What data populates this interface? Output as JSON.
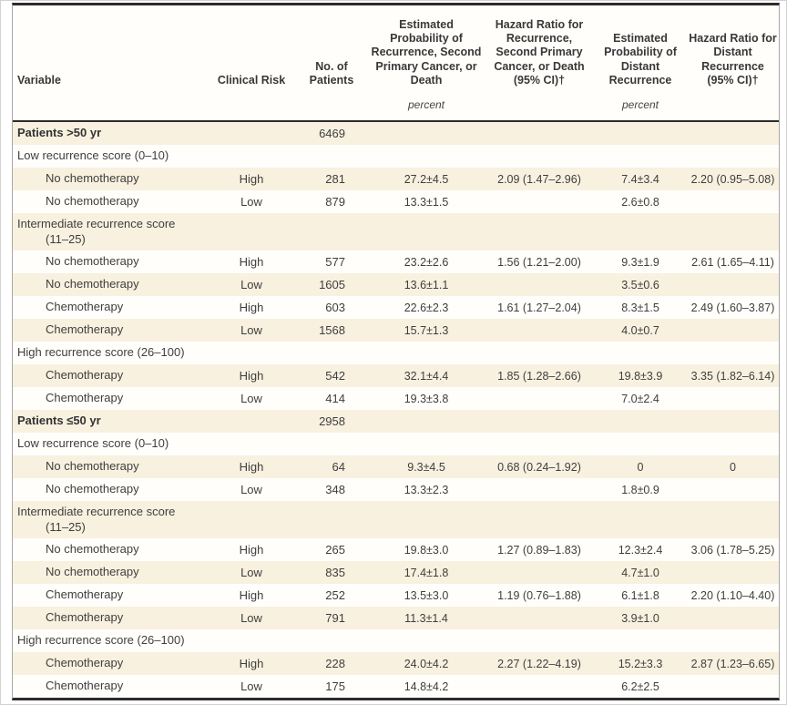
{
  "colors": {
    "row_shade": "#f8f1df",
    "rule_dark": "#2c2c2c",
    "side_border": "#a8a8a8",
    "text": "#3e3e3e"
  },
  "table": {
    "columns": {
      "variable": "Variable",
      "clinical_risk": "Clinical Risk",
      "no_of_patients": "No. of Patients",
      "prob_recurrence": "Estimated Probability of Recurrence, Second Primary Cancer, or Death",
      "hr_recurrence": "Hazard Ratio for Recurrence, Second Primary Cancer, or Death (95% CI)†",
      "prob_distant": "Estimated Probability of Distant Recurrence",
      "hr_distant": "Hazard Ratio for Distant Recurrence (95% CI)†"
    },
    "units_label": "percent",
    "rows": [
      {
        "variable": "Patients >50 yr",
        "bold": true,
        "no_of_patients": "6469",
        "shaded": true
      },
      {
        "variable": "Low recurrence score (0–10)",
        "shaded": false
      },
      {
        "variable": "No chemotherapy",
        "indent": true,
        "clinical_risk": "High",
        "no_of_patients": "281",
        "prob_recurrence": "27.2±4.5",
        "hr_recurrence": "2.09 (1.47–2.96)",
        "prob_distant": "7.4±3.4",
        "hr_distant": "2.20 (0.95–5.08)",
        "shaded": true
      },
      {
        "variable": "No chemotherapy",
        "indent": true,
        "clinical_risk": "Low",
        "no_of_patients": "879",
        "prob_recurrence": "13.3±1.5",
        "prob_distant": "2.6±0.8",
        "shaded": false
      },
      {
        "variable": "Intermediate recurrence score",
        "variable_line2": "(11–25)",
        "shaded": true
      },
      {
        "variable": "No chemotherapy",
        "indent": true,
        "clinical_risk": "High",
        "no_of_patients": "577",
        "prob_recurrence": "23.2±2.6",
        "hr_recurrence": "1.56 (1.21–2.00)",
        "prob_distant": "9.3±1.9",
        "hr_distant": "2.61 (1.65–4.11)",
        "shaded": false
      },
      {
        "variable": "No chemotherapy",
        "indent": true,
        "clinical_risk": "Low",
        "no_of_patients": "1605",
        "prob_recurrence": "13.6±1.1",
        "prob_distant": "3.5±0.6",
        "shaded": true
      },
      {
        "variable": "Chemotherapy",
        "indent": true,
        "clinical_risk": "High",
        "no_of_patients": "603",
        "prob_recurrence": "22.6±2.3",
        "hr_recurrence": "1.61 (1.27–2.04)",
        "prob_distant": "8.3±1.5",
        "hr_distant": "2.49 (1.60–3.87)",
        "shaded": false
      },
      {
        "variable": "Chemotherapy",
        "indent": true,
        "clinical_risk": "Low",
        "no_of_patients": "1568",
        "prob_recurrence": "15.7±1.3",
        "prob_distant": "4.0±0.7",
        "shaded": true
      },
      {
        "variable": "High recurrence score (26–100)",
        "shaded": false
      },
      {
        "variable": "Chemotherapy",
        "indent": true,
        "clinical_risk": "High",
        "no_of_patients": "542",
        "prob_recurrence": "32.1±4.4",
        "hr_recurrence": "1.85 (1.28–2.66)",
        "prob_distant": "19.8±3.9",
        "hr_distant": "3.35 (1.82–6.14)",
        "shaded": true
      },
      {
        "variable": "Chemotherapy",
        "indent": true,
        "clinical_risk": "Low",
        "no_of_patients": "414",
        "prob_recurrence": "19.3±3.8",
        "prob_distant": "7.0±2.4",
        "shaded": false
      },
      {
        "variable": "Patients ≤50 yr",
        "bold": true,
        "no_of_patients": "2958",
        "shaded": true
      },
      {
        "variable": "Low recurrence score (0–10)",
        "shaded": false
      },
      {
        "variable": "No chemotherapy",
        "indent": true,
        "clinical_risk": "High",
        "no_of_patients": "64",
        "prob_recurrence": "9.3±4.5",
        "hr_recurrence": "0.68 (0.24–1.92)",
        "prob_distant": "0",
        "hr_distant": "0",
        "shaded": true
      },
      {
        "variable": "No chemotherapy",
        "indent": true,
        "clinical_risk": "Low",
        "no_of_patients": "348",
        "prob_recurrence": "13.3±2.3",
        "prob_distant": "1.8±0.9",
        "shaded": false
      },
      {
        "variable": "Intermediate recurrence score",
        "variable_line2": "(11–25)",
        "shaded": true
      },
      {
        "variable": "No chemotherapy",
        "indent": true,
        "clinical_risk": "High",
        "no_of_patients": "265",
        "prob_recurrence": "19.8±3.0",
        "hr_recurrence": "1.27 (0.89–1.83)",
        "prob_distant": "12.3±2.4",
        "hr_distant": "3.06 (1.78–5.25)",
        "shaded": false
      },
      {
        "variable": "No chemotherapy",
        "indent": true,
        "clinical_risk": "Low",
        "no_of_patients": "835",
        "prob_recurrence": "17.4±1.8",
        "prob_distant": "4.7±1.0",
        "shaded": true
      },
      {
        "variable": "Chemotherapy",
        "indent": true,
        "clinical_risk": "High",
        "no_of_patients": "252",
        "prob_recurrence": "13.5±3.0",
        "hr_recurrence": "1.19 (0.76–1.88)",
        "prob_distant": "6.1±1.8",
        "hr_distant": "2.20 (1.10–4.40)",
        "shaded": false
      },
      {
        "variable": "Chemotherapy",
        "indent": true,
        "clinical_risk": "Low",
        "no_of_patients": "791",
        "prob_recurrence": "11.3±1.4",
        "prob_distant": "3.9±1.0",
        "shaded": true
      },
      {
        "variable": "High recurrence score (26–100)",
        "shaded": false
      },
      {
        "variable": "Chemotherapy",
        "indent": true,
        "clinical_risk": "High",
        "no_of_patients": "228",
        "prob_recurrence": "24.0±4.2",
        "hr_recurrence": "2.27 (1.22–4.19)",
        "prob_distant": "15.2±3.3",
        "hr_distant": "2.87 (1.23–6.65)",
        "shaded": true
      },
      {
        "variable": "Chemotherapy",
        "indent": true,
        "clinical_risk": "Low",
        "no_of_patients": "175",
        "prob_recurrence": "14.8±4.2",
        "prob_distant": "6.2±2.5",
        "shaded": false
      }
    ]
  }
}
